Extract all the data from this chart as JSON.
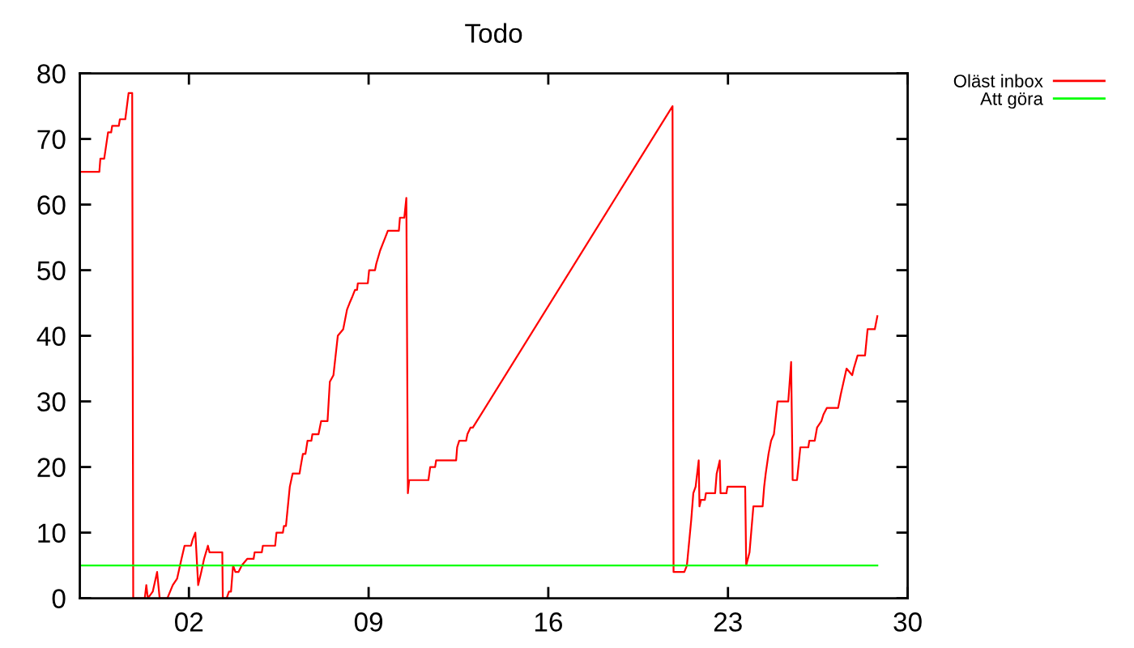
{
  "chart_data": {
    "type": "line",
    "title": "Todo",
    "xlim": [
      -2.25,
      30
    ],
    "xticks": [
      {
        "value": 2,
        "label": "02"
      },
      {
        "value": 9,
        "label": "09"
      },
      {
        "value": 16,
        "label": "16"
      },
      {
        "value": 23,
        "label": "23"
      },
      {
        "value": 30,
        "label": "30"
      }
    ],
    "ylim": [
      0,
      80
    ],
    "yticks": [
      0,
      10,
      20,
      30,
      40,
      50,
      60,
      70,
      80
    ],
    "grid": false,
    "legend": "top right",
    "series": [
      {
        "name": "Oläst inbox",
        "color": "#ff0000",
        "x": [
          -2.25,
          -1.49,
          -1.45,
          -1.3,
          -1.15,
          -1.03,
          -0.99,
          -0.73,
          -0.69,
          -0.48,
          -0.35,
          -0.21,
          -0.17,
          0.28,
          0.34,
          0.4,
          0.59,
          0.76,
          0.86,
          1.16,
          1.37,
          1.54,
          1.71,
          1.83,
          2.08,
          2.15,
          2.25,
          2.36,
          2.48,
          2.59,
          2.74,
          2.8,
          3.3,
          3.32,
          3.47,
          3.56,
          3.64,
          3.72,
          3.81,
          3.93,
          4.06,
          4.27,
          4.52,
          4.56,
          4.84,
          4.88,
          5.36,
          5.41,
          5.66,
          5.7,
          5.78,
          5.93,
          6.04,
          6.31,
          6.35,
          6.44,
          6.54,
          6.62,
          6.77,
          6.81,
          7.05,
          7.15,
          7.4,
          7.49,
          7.63,
          7.8,
          8.01,
          8.16,
          8.26,
          8.37,
          8.47,
          8.55,
          8.58,
          8.97,
          9.02,
          9.25,
          9.3,
          9.45,
          9.55,
          9.65,
          9.75,
          10.18,
          10.22,
          10.39,
          10.47,
          10.53,
          10.58,
          11.33,
          11.4,
          11.59,
          11.63,
          12.41,
          12.45,
          12.53,
          12.8,
          12.85,
          12.97,
          13.06,
          20.84,
          20.88,
          21.3,
          21.4,
          21.57,
          21.65,
          21.74,
          21.86,
          21.89,
          21.95,
          22.1,
          22.14,
          22.5,
          22.56,
          22.68,
          22.71,
          22.94,
          22.98,
          23.67,
          23.71,
          23.84,
          23.99,
          24.35,
          24.41,
          24.47,
          24.58,
          24.68,
          24.79,
          24.93,
          25.35,
          25.46,
          25.52,
          25.69,
          25.82,
          26.13,
          26.17,
          26.38,
          26.47,
          26.64,
          26.72,
          26.85,
          27.29,
          27.39,
          27.62,
          27.84,
          27.9,
          28.05,
          28.34,
          28.44,
          28.72,
          28.82
        ],
        "values": [
          65,
          65,
          67,
          67,
          71,
          71,
          72,
          72,
          73,
          73,
          77,
          77,
          0,
          0,
          2,
          0,
          1,
          4,
          0,
          0,
          2,
          3,
          6,
          8,
          8,
          9,
          10,
          2,
          4,
          6,
          8,
          7,
          7,
          0,
          0,
          1,
          1,
          5,
          4,
          4,
          5,
          6,
          6,
          7,
          7,
          8,
          8,
          10,
          10,
          11,
          11,
          17,
          19,
          19,
          20,
          22,
          22,
          24,
          24,
          25,
          25,
          27,
          27,
          33,
          34,
          40,
          41,
          44,
          45,
          46,
          47,
          47,
          48,
          48,
          50,
          50,
          51,
          53,
          54,
          55,
          56,
          56,
          58,
          58,
          61,
          16,
          18,
          18,
          20,
          20,
          21,
          21,
          23,
          24,
          24,
          25,
          26,
          26,
          75,
          4,
          4,
          5,
          12,
          16,
          17,
          21,
          14,
          15,
          15,
          16,
          16,
          19,
          21,
          16,
          16,
          17,
          17,
          5,
          7,
          14,
          14,
          17,
          19,
          22,
          24,
          25,
          30,
          30,
          36,
          18,
          18,
          23,
          23,
          24,
          24,
          26,
          27,
          28,
          29,
          29,
          31,
          35,
          34,
          35,
          37,
          37,
          41,
          41,
          43
        ]
      },
      {
        "name": "Att göra",
        "color": "#00ff00",
        "x": [
          -2.25,
          28.82
        ],
        "values": [
          5,
          5
        ]
      }
    ]
  }
}
